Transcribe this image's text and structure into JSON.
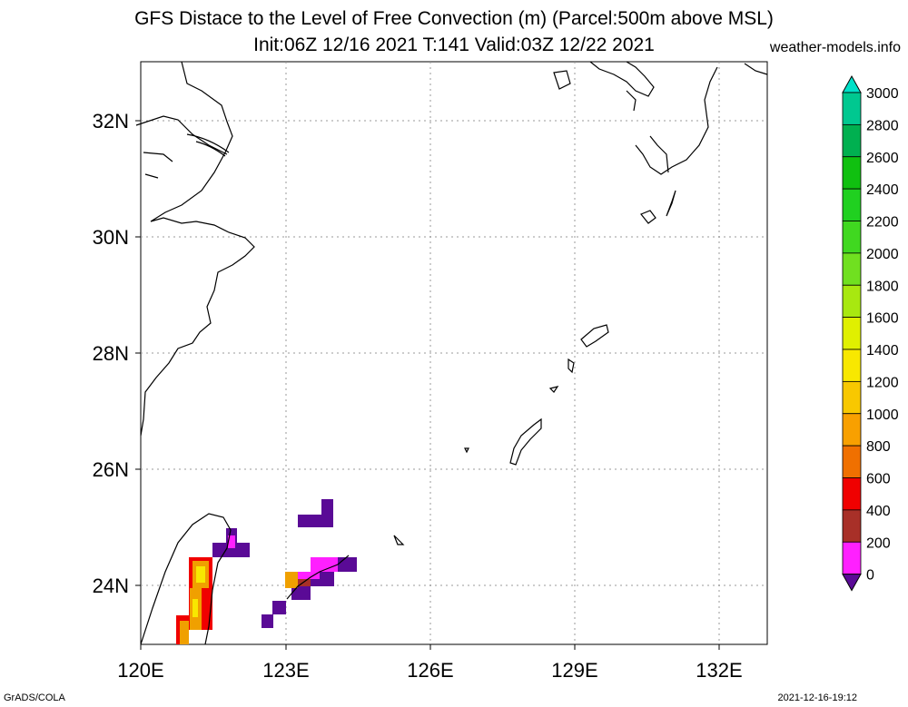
{
  "title_line1": "GFS Distace to the Level of Free Convection (m) (Parcel:500m above MSL)",
  "title_line2": "Init:06Z 12/16 2021 T:141 Valid:03Z 12/22 2021",
  "site": "weather-models.info",
  "footer_left": "GrADS/COLA",
  "footer_right": "2021-12-16-19:12",
  "lon_labels": [
    "120E",
    "123E",
    "126E",
    "129E",
    "132E"
  ],
  "lat_labels": [
    "32N",
    "30N",
    "28N",
    "26N",
    "24N"
  ],
  "colorbar": {
    "labels": [
      "3000",
      "2800",
      "2600",
      "2400",
      "2200",
      "2000",
      "1800",
      "1600",
      "1400",
      "1200",
      "1000",
      "800",
      "600",
      "400",
      "200",
      "0"
    ],
    "colors": [
      "#00e0c8",
      "#00c890",
      "#00b050",
      "#10c010",
      "#20d020",
      "#40d820",
      "#70e020",
      "#a8e810",
      "#e0f000",
      "#f8e800",
      "#f8c800",
      "#f8a000",
      "#f07000",
      "#f00000",
      "#a83028",
      "#ff20ff",
      "#5a0a96"
    ]
  }
}
